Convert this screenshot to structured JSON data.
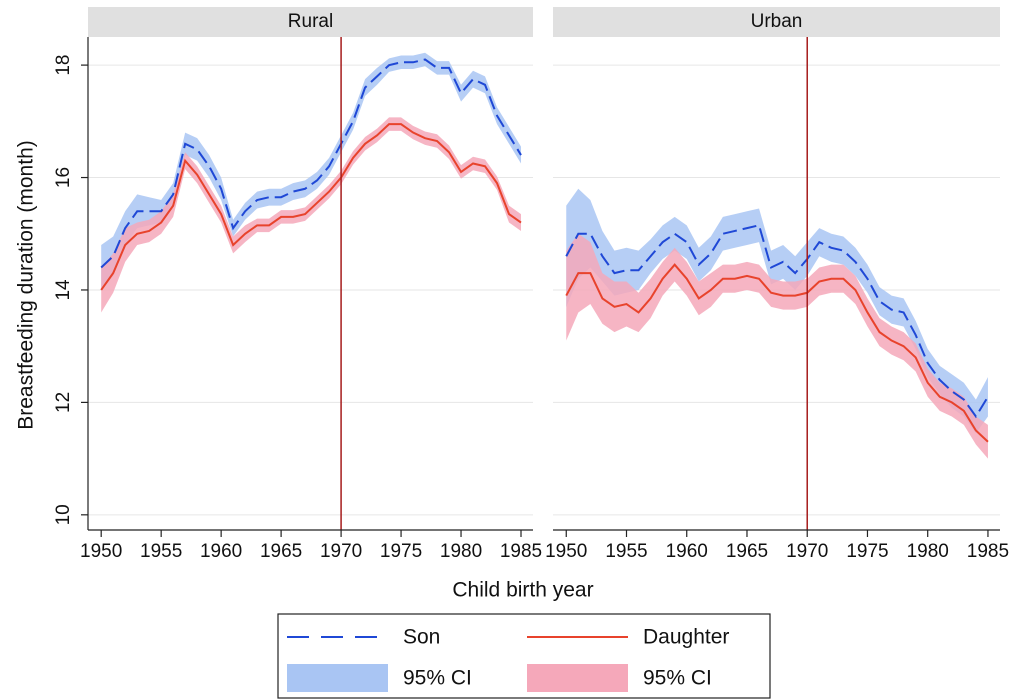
{
  "chart_data": {
    "type": "line",
    "ylabel": "Breastfeeding duration (month)",
    "xlabel": "Child birth year",
    "x": [
      1950,
      1951,
      1952,
      1953,
      1954,
      1955,
      1956,
      1957,
      1958,
      1959,
      1960,
      1961,
      1962,
      1963,
      1964,
      1965,
      1966,
      1967,
      1968,
      1969,
      1970,
      1971,
      1972,
      1973,
      1974,
      1975,
      1976,
      1977,
      1978,
      1979,
      1980,
      1981,
      1982,
      1983,
      1984,
      1985
    ],
    "xlim": [
      1948.9,
      1986
    ],
    "xticks": [
      1950,
      1955,
      1960,
      1965,
      1970,
      1975,
      1980,
      1985
    ],
    "ylim": [
      9.73,
      18.5
    ],
    "yticks": [
      10,
      12,
      14,
      16,
      18
    ],
    "grid": true,
    "vline": 1970,
    "vline_color": "#a61c1c",
    "panels": [
      {
        "title": "Rural",
        "series": [
          {
            "name": "Son",
            "ci_name": "95% CI",
            "color": "#1f48d6",
            "band_color": "#a9c5f3",
            "dashed": true,
            "values": [
              14.4,
              14.6,
              15.1,
              15.4,
              15.4,
              15.4,
              15.7,
              16.6,
              16.5,
              16.2,
              15.8,
              15.1,
              15.4,
              15.6,
              15.65,
              15.65,
              15.75,
              15.8,
              15.95,
              16.2,
              16.6,
              17.0,
              17.6,
              17.8,
              18.0,
              18.05,
              18.05,
              18.1,
              17.95,
              17.95,
              17.5,
              17.75,
              17.65,
              17.1,
              16.75,
              16.4
            ],
            "ci": [
              0.4,
              0.35,
              0.3,
              0.3,
              0.25,
              0.2,
              0.2,
              0.2,
              0.2,
              0.2,
              0.2,
              0.15,
              0.15,
              0.15,
              0.15,
              0.15,
              0.15,
              0.15,
              0.15,
              0.15,
              0.15,
              0.15,
              0.15,
              0.15,
              0.12,
              0.12,
              0.12,
              0.12,
              0.12,
              0.12,
              0.15,
              0.15,
              0.15,
              0.15,
              0.15,
              0.15
            ]
          },
          {
            "name": "Daughter",
            "ci_name": "95% CI",
            "color": "#e8432c",
            "band_color": "#f5a8ba",
            "dashed": false,
            "values": [
              14.0,
              14.3,
              14.8,
              15.0,
              15.05,
              15.2,
              15.5,
              16.3,
              16.05,
              15.7,
              15.35,
              14.8,
              15.0,
              15.15,
              15.15,
              15.3,
              15.3,
              15.35,
              15.55,
              15.75,
              16.0,
              16.35,
              16.6,
              16.75,
              16.95,
              16.95,
              16.8,
              16.7,
              16.65,
              16.45,
              16.1,
              16.25,
              16.2,
              15.9,
              15.35,
              15.2
            ],
            "ci": [
              0.4,
              0.35,
              0.3,
              0.2,
              0.2,
              0.2,
              0.2,
              0.15,
              0.15,
              0.15,
              0.15,
              0.15,
              0.15,
              0.12,
              0.12,
              0.12,
              0.12,
              0.12,
              0.12,
              0.12,
              0.12,
              0.12,
              0.12,
              0.12,
              0.12,
              0.12,
              0.12,
              0.12,
              0.12,
              0.12,
              0.12,
              0.12,
              0.12,
              0.12,
              0.15,
              0.15
            ]
          }
        ]
      },
      {
        "title": "Urban",
        "series": [
          {
            "name": "Son",
            "ci_name": "95% CI",
            "color": "#1f48d6",
            "band_color": "#a9c5f3",
            "dashed": true,
            "values": [
              14.6,
              15.0,
              15.0,
              14.6,
              14.3,
              14.35,
              14.35,
              14.6,
              14.85,
              15.0,
              14.85,
              14.45,
              14.65,
              15.0,
              15.05,
              15.1,
              15.15,
              14.4,
              14.5,
              14.3,
              14.55,
              14.85,
              14.75,
              14.7,
              14.5,
              14.2,
              13.8,
              13.65,
              13.6,
              13.2,
              12.7,
              12.4,
              12.2,
              12.05,
              11.75,
              12.1
            ],
            "ci": [
              0.9,
              0.8,
              0.6,
              0.45,
              0.4,
              0.4,
              0.35,
              0.3,
              0.3,
              0.3,
              0.3,
              0.3,
              0.3,
              0.3,
              0.3,
              0.3,
              0.3,
              0.3,
              0.3,
              0.3,
              0.3,
              0.25,
              0.25,
              0.25,
              0.25,
              0.25,
              0.25,
              0.25,
              0.25,
              0.25,
              0.25,
              0.25,
              0.3,
              0.3,
              0.3,
              0.35
            ]
          },
          {
            "name": "Daughter",
            "ci_name": "95% CI",
            "color": "#e8432c",
            "band_color": "#f5a8ba",
            "dashed": false,
            "values": [
              13.9,
              14.3,
              14.3,
              13.85,
              13.7,
              13.75,
              13.6,
              13.85,
              14.2,
              14.45,
              14.2,
              13.85,
              14.0,
              14.2,
              14.2,
              14.25,
              14.2,
              13.95,
              13.9,
              13.9,
              13.95,
              14.15,
              14.2,
              14.2,
              14.0,
              13.6,
              13.25,
              13.1,
              13.0,
              12.8,
              12.35,
              12.1,
              12.0,
              11.85,
              11.5,
              11.3
            ],
            "ci": [
              0.8,
              0.7,
              0.55,
              0.45,
              0.45,
              0.4,
              0.35,
              0.35,
              0.3,
              0.3,
              0.3,
              0.3,
              0.3,
              0.25,
              0.25,
              0.25,
              0.25,
              0.25,
              0.25,
              0.25,
              0.25,
              0.25,
              0.25,
              0.25,
              0.25,
              0.25,
              0.25,
              0.25,
              0.25,
              0.25,
              0.25,
              0.25,
              0.25,
              0.25,
              0.25,
              0.3
            ]
          }
        ]
      }
    ]
  }
}
